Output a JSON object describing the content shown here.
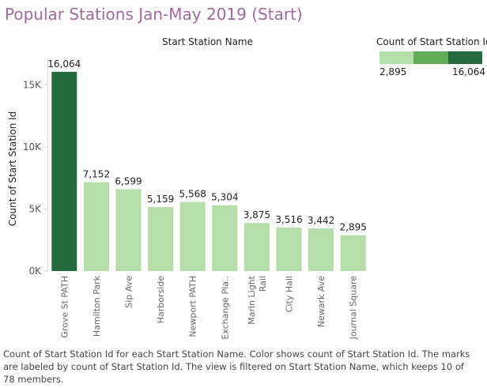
{
  "title": "Popular Stations Jan-May 2019 (Start)",
  "column_header": "Start Station Name",
  "legend": {
    "title": "Count of Start Station Id",
    "min_label": "2,895",
    "max_label": "16,064",
    "colors": [
      "#b5dea8",
      "#5fad56",
      "#236a3c"
    ]
  },
  "caption": "Count of Start Station Id for each Start Station Name.  Color shows count of Start Station Id.  The marks are labeled by count of Start Station Id. The view is filtered on Start Station Name, which keeps 10 of 78 members.",
  "chart_data": {
    "type": "bar",
    "xlabel": "",
    "ylabel": "Count of Start Station Id",
    "ylim": [
      0,
      16500
    ],
    "yticks": [
      0,
      5000,
      10000,
      15000
    ],
    "ytick_labels": [
      "0K",
      "5K",
      "10K",
      "15K"
    ],
    "grid": false,
    "categories": [
      "Grove St PATH",
      "Hamilton Park",
      "Sip Ave",
      "Harborside",
      "Newport PATH",
      "Exchange Pla..",
      "Marin Light Rail",
      "City Hall",
      "Newark Ave",
      "Journal Square"
    ],
    "values": [
      16064,
      7152,
      6599,
      5159,
      5568,
      5304,
      3875,
      3516,
      3442,
      2895
    ],
    "value_labels": [
      "16,064",
      "7,152",
      "6,599",
      "5,159",
      "5,568",
      "5,304",
      "3,875",
      "3,516",
      "3,442",
      "2,895"
    ],
    "bar_colors": [
      "#236a3c",
      "#b5dea8",
      "#b5dea8",
      "#b5dea8",
      "#b5dea8",
      "#b5dea8",
      "#b5dea8",
      "#b5dea8",
      "#b5dea8",
      "#b5dea8"
    ]
  }
}
